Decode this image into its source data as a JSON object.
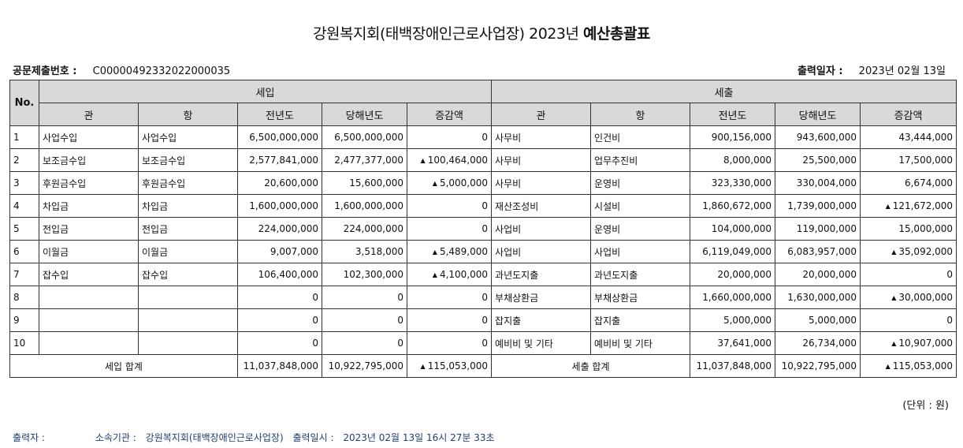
{
  "title_normal": "강원복지회(태백장애인근로사업장) 2023년 ",
  "title_bold": "예산총괄표",
  "doc_no_label": "공문제출번호 :",
  "doc_no": "C00000492332022000035",
  "print_date_label": "출력일자 :",
  "print_date": "2023년 02월 13일",
  "headers": {
    "no": "No.",
    "income": "세입",
    "expense": "세출",
    "gwan": "관",
    "hang": "항",
    "prev": "전년도",
    "curr": "당해년도",
    "diff": "증감액"
  },
  "rows": [
    {
      "no": "1",
      "in_gwan": "사업수입",
      "in_hang": "사업수입",
      "in_prev": "6,500,000,000",
      "in_curr": "6,500,000,000",
      "in_diff": "0",
      "in_up": false,
      "ex_gwan": "사무비",
      "ex_hang": "인건비",
      "ex_prev": "900,156,000",
      "ex_curr": "943,600,000",
      "ex_diff": "43,444,000",
      "ex_up": false
    },
    {
      "no": "2",
      "in_gwan": "보조금수입",
      "in_hang": "보조금수입",
      "in_prev": "2,577,841,000",
      "in_curr": "2,477,377,000",
      "in_diff": "100,464,000",
      "in_up": true,
      "ex_gwan": "사무비",
      "ex_hang": "업무추진비",
      "ex_prev": "8,000,000",
      "ex_curr": "25,500,000",
      "ex_diff": "17,500,000",
      "ex_up": false
    },
    {
      "no": "3",
      "in_gwan": "후원금수입",
      "in_hang": "후원금수입",
      "in_prev": "20,600,000",
      "in_curr": "15,600,000",
      "in_diff": "5,000,000",
      "in_up": true,
      "ex_gwan": "사무비",
      "ex_hang": "운영비",
      "ex_prev": "323,330,000",
      "ex_curr": "330,004,000",
      "ex_diff": "6,674,000",
      "ex_up": false
    },
    {
      "no": "4",
      "in_gwan": "차입금",
      "in_hang": "차입금",
      "in_prev": "1,600,000,000",
      "in_curr": "1,600,000,000",
      "in_diff": "0",
      "in_up": false,
      "ex_gwan": "재산조성비",
      "ex_hang": "시설비",
      "ex_prev": "1,860,672,000",
      "ex_curr": "1,739,000,000",
      "ex_diff": "121,672,000",
      "ex_up": true
    },
    {
      "no": "5",
      "in_gwan": "전입금",
      "in_hang": "전입금",
      "in_prev": "224,000,000",
      "in_curr": "224,000,000",
      "in_diff": "0",
      "in_up": false,
      "ex_gwan": "사업비",
      "ex_hang": "운영비",
      "ex_prev": "104,000,000",
      "ex_curr": "119,000,000",
      "ex_diff": "15,000,000",
      "ex_up": false
    },
    {
      "no": "6",
      "in_gwan": "이월금",
      "in_hang": "이월금",
      "in_prev": "9,007,000",
      "in_curr": "3,518,000",
      "in_diff": "5,489,000",
      "in_up": true,
      "ex_gwan": "사업비",
      "ex_hang": "사업비",
      "ex_prev": "6,119,049,000",
      "ex_curr": "6,083,957,000",
      "ex_diff": "35,092,000",
      "ex_up": true
    },
    {
      "no": "7",
      "in_gwan": "잡수입",
      "in_hang": "잡수입",
      "in_prev": "106,400,000",
      "in_curr": "102,300,000",
      "in_diff": "4,100,000",
      "in_up": true,
      "ex_gwan": "과년도지출",
      "ex_hang": "과년도지출",
      "ex_prev": "20,000,000",
      "ex_curr": "20,000,000",
      "ex_diff": "0",
      "ex_up": false
    },
    {
      "no": "8",
      "in_gwan": "",
      "in_hang": "",
      "in_prev": "0",
      "in_curr": "0",
      "in_diff": "0",
      "in_up": false,
      "ex_gwan": "부채상환금",
      "ex_hang": "부채상환금",
      "ex_prev": "1,660,000,000",
      "ex_curr": "1,630,000,000",
      "ex_diff": "30,000,000",
      "ex_up": true
    },
    {
      "no": "9",
      "in_gwan": "",
      "in_hang": "",
      "in_prev": "0",
      "in_curr": "0",
      "in_diff": "0",
      "in_up": false,
      "ex_gwan": "잡지출",
      "ex_hang": "잡지출",
      "ex_prev": "5,000,000",
      "ex_curr": "5,000,000",
      "ex_diff": "0",
      "ex_up": false
    },
    {
      "no": "10",
      "in_gwan": "",
      "in_hang": "",
      "in_prev": "0",
      "in_curr": "0",
      "in_diff": "0",
      "in_up": false,
      "ex_gwan": "예비비 및 기타",
      "ex_hang": "예비비 및 기타",
      "ex_prev": "37,641,000",
      "ex_curr": "26,734,000",
      "ex_diff": "10,907,000",
      "ex_up": true
    }
  ],
  "totals": {
    "in_label": "세입 합계",
    "in_prev": "11,037,848,000",
    "in_curr": "10,922,795,000",
    "in_diff": "115,053,000",
    "in_up": true,
    "ex_label": "세출 합계",
    "ex_prev": "11,037,848,000",
    "ex_curr": "10,922,795,000",
    "ex_diff": "115,053,000",
    "ex_up": true
  },
  "unit_note": "(단위 : 원)",
  "footer": {
    "printer_label": "출력자 :",
    "org_label": "소속기관 :",
    "org": "강원복지회(태백장애인근로사업장)",
    "printed_at_label": "출력일시 :",
    "printed_at": "2023년 02월 13일 16시 27분 33초"
  }
}
